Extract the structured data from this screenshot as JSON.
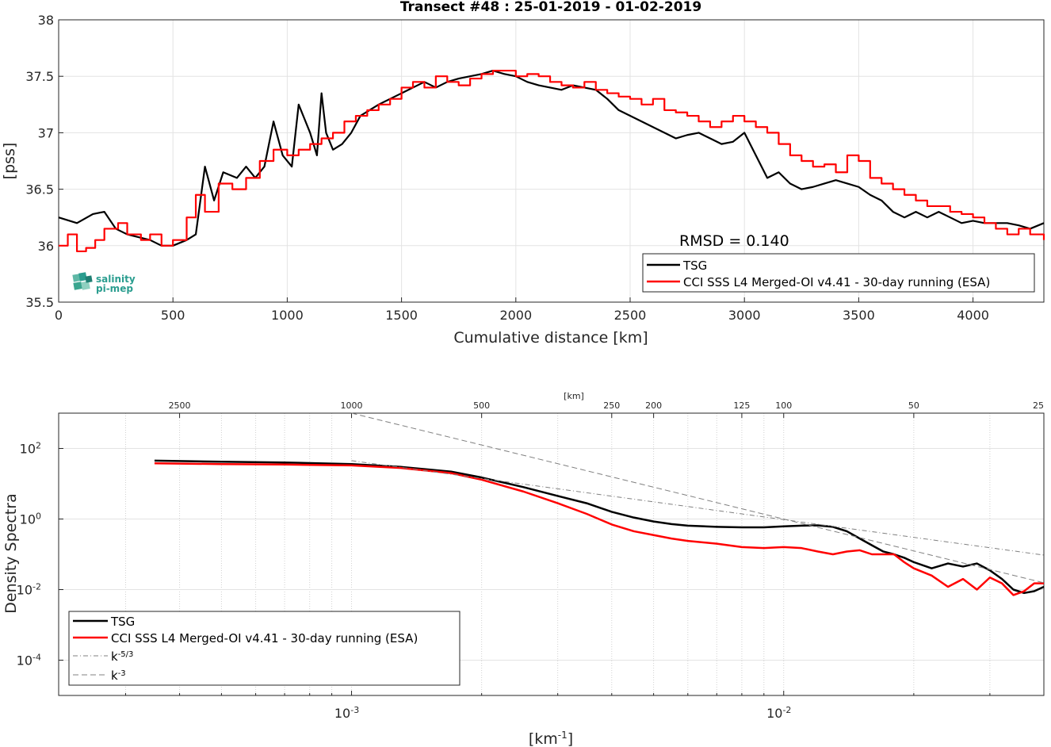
{
  "chart_data": [
    {
      "type": "line",
      "title": "Transect #48 : 25-01-2019 - 01-02-2019",
      "xlabel": "Cumulative distance [km]",
      "ylabel": "[pss]",
      "xlim": [
        0,
        4310
      ],
      "ylim": [
        35.5,
        38
      ],
      "xticks": [
        0,
        500,
        1000,
        1500,
        2000,
        2500,
        3000,
        3500,
        4000
      ],
      "xtick_labels": [
        "0",
        "500",
        "1000",
        "1500",
        "2000",
        "2500",
        "3000",
        "3500",
        "4000"
      ],
      "yticks": [
        35.5,
        36,
        36.5,
        37,
        37.5,
        38
      ],
      "ytick_labels": [
        "35.5",
        "36",
        "36.5",
        "37",
        "37.5",
        "38"
      ],
      "grid": true,
      "legend_position": "bottom-right",
      "annotation": "RMSD = 0.140",
      "series": [
        {
          "name": "TSG",
          "color": "#000000",
          "x": [
            0,
            80,
            150,
            200,
            250,
            300,
            400,
            450,
            500,
            560,
            600,
            640,
            680,
            720,
            780,
            820,
            860,
            900,
            940,
            980,
            1020,
            1050,
            1100,
            1130,
            1150,
            1170,
            1200,
            1240,
            1280,
            1320,
            1360,
            1400,
            1450,
            1500,
            1550,
            1600,
            1650,
            1700,
            1750,
            1800,
            1850,
            1900,
            1950,
            2000,
            2050,
            2100,
            2150,
            2200,
            2250,
            2300,
            2350,
            2400,
            2450,
            2500,
            2550,
            2600,
            2650,
            2700,
            2750,
            2800,
            2850,
            2900,
            2950,
            3000,
            3050,
            3100,
            3150,
            3200,
            3250,
            3300,
            3350,
            3400,
            3450,
            3500,
            3550,
            3600,
            3650,
            3700,
            3750,
            3800,
            3850,
            3900,
            3950,
            4000,
            4050,
            4100,
            4150,
            4200,
            4250,
            4310
          ],
          "y": [
            36.25,
            36.2,
            36.28,
            36.3,
            36.15,
            36.1,
            36.05,
            36.0,
            36.0,
            36.05,
            36.1,
            36.7,
            36.4,
            36.65,
            36.6,
            36.7,
            36.6,
            36.7,
            37.1,
            36.8,
            36.7,
            37.25,
            37.0,
            36.8,
            37.35,
            37.0,
            36.85,
            36.9,
            37.0,
            37.15,
            37.2,
            37.25,
            37.3,
            37.35,
            37.4,
            37.45,
            37.4,
            37.45,
            37.48,
            37.5,
            37.52,
            37.55,
            37.52,
            37.5,
            37.45,
            37.42,
            37.4,
            37.38,
            37.42,
            37.4,
            37.38,
            37.3,
            37.2,
            37.15,
            37.1,
            37.05,
            37.0,
            36.95,
            36.98,
            37.0,
            36.95,
            36.9,
            36.92,
            37.0,
            36.8,
            36.6,
            36.65,
            36.55,
            36.5,
            36.52,
            36.55,
            36.58,
            36.55,
            36.52,
            36.45,
            36.4,
            36.3,
            36.25,
            36.3,
            36.25,
            36.3,
            36.25,
            36.2,
            36.22,
            36.2,
            36.2,
            36.2,
            36.18,
            36.15,
            36.2
          ]
        },
        {
          "name": "CCI SSS L4 Merged-OI v4.41 - 30-day running (ESA)",
          "color": "#ff0000",
          "x": [
            0,
            40,
            80,
            120,
            160,
            200,
            260,
            300,
            360,
            400,
            450,
            500,
            560,
            600,
            640,
            700,
            760,
            820,
            880,
            940,
            1000,
            1050,
            1100,
            1150,
            1200,
            1250,
            1300,
            1350,
            1400,
            1450,
            1500,
            1550,
            1600,
            1650,
            1700,
            1750,
            1800,
            1850,
            1900,
            1950,
            2000,
            2050,
            2100,
            2150,
            2200,
            2250,
            2300,
            2350,
            2400,
            2450,
            2500,
            2550,
            2600,
            2650,
            2700,
            2750,
            2800,
            2850,
            2900,
            2950,
            3000,
            3050,
            3100,
            3150,
            3200,
            3250,
            3300,
            3350,
            3400,
            3450,
            3500,
            3550,
            3600,
            3650,
            3700,
            3750,
            3800,
            3850,
            3900,
            3950,
            4000,
            4050,
            4100,
            4150,
            4200,
            4250,
            4310
          ],
          "y": [
            36.0,
            36.1,
            35.95,
            35.98,
            36.05,
            36.15,
            36.2,
            36.1,
            36.05,
            36.1,
            36.0,
            36.05,
            36.25,
            36.45,
            36.3,
            36.55,
            36.5,
            36.6,
            36.75,
            36.85,
            36.8,
            36.85,
            36.9,
            36.95,
            37.0,
            37.1,
            37.15,
            37.2,
            37.25,
            37.3,
            37.4,
            37.45,
            37.4,
            37.5,
            37.45,
            37.42,
            37.48,
            37.52,
            37.55,
            37.55,
            37.5,
            37.52,
            37.5,
            37.45,
            37.42,
            37.4,
            37.45,
            37.38,
            37.35,
            37.32,
            37.3,
            37.25,
            37.3,
            37.2,
            37.18,
            37.15,
            37.1,
            37.05,
            37.1,
            37.15,
            37.1,
            37.05,
            37.0,
            36.9,
            36.8,
            36.75,
            36.7,
            36.72,
            36.65,
            36.8,
            36.75,
            36.6,
            36.55,
            36.5,
            36.45,
            36.4,
            36.35,
            36.35,
            36.3,
            36.28,
            36.25,
            36.2,
            36.15,
            36.1,
            36.15,
            36.1,
            36.05
          ]
        }
      ],
      "legend": [
        "TSG",
        "CCI SSS L4 Merged-OI v4.41 - 30-day running (ESA)"
      ]
    },
    {
      "type": "line",
      "xscale": "log",
      "yscale": "log",
      "xlabel": "[km-1]",
      "ylabel": "Density Spectra",
      "secondary_xlabel": "[km]",
      "xlim": [
        0.00021,
        0.04
      ],
      "ylim": [
        1e-05,
        1000
      ],
      "xticks": [
        0.001,
        0.01
      ],
      "xtick_labels": [
        "10",
        "10"
      ],
      "xtick_exponents": [
        "-3",
        "-2"
      ],
      "yticks": [
        0.0001,
        0.01,
        1,
        100
      ],
      "ytick_labels": [
        "10",
        "10",
        "10",
        "10"
      ],
      "ytick_exponents": [
        "-4",
        "-2",
        "0",
        "2"
      ],
      "top_ticks_km": [
        2500,
        1000,
        500,
        250,
        200,
        125,
        100,
        50,
        25
      ],
      "top_tick_labels": [
        "2500",
        "1000",
        "500",
        "250",
        "200",
        "125",
        "100",
        "50",
        "25"
      ],
      "grid": true,
      "legend_position": "bottom-left",
      "series": [
        {
          "name": "TSG",
          "color": "#000000",
          "x": [
            0.00035,
            0.0005,
            0.0007,
            0.001,
            0.0013,
            0.0017,
            0.002,
            0.0025,
            0.003,
            0.0035,
            0.004,
            0.0045,
            0.005,
            0.0055,
            0.006,
            0.007,
            0.008,
            0.009,
            0.01,
            0.011,
            0.012,
            0.013,
            0.014,
            0.015,
            0.016,
            0.017,
            0.018,
            0.019,
            0.02,
            0.022,
            0.024,
            0.026,
            0.028,
            0.03,
            0.032,
            0.034,
            0.036,
            0.038,
            0.04
          ],
          "y": [
            45,
            42,
            40,
            36,
            30,
            22,
            15,
            8,
            4.5,
            2.8,
            1.6,
            1.1,
            0.85,
            0.72,
            0.65,
            0.6,
            0.58,
            0.58,
            0.62,
            0.65,
            0.66,
            0.6,
            0.45,
            0.28,
            0.18,
            0.12,
            0.1,
            0.08,
            0.06,
            0.04,
            0.055,
            0.045,
            0.055,
            0.035,
            0.02,
            0.01,
            0.008,
            0.009,
            0.012
          ]
        },
        {
          "name": "CCI SSS L4 Merged-OI v4.41 - 30-day running (ESA)",
          "color": "#ff0000",
          "x": [
            0.00035,
            0.0005,
            0.0007,
            0.001,
            0.0013,
            0.0017,
            0.002,
            0.0025,
            0.003,
            0.0035,
            0.004,
            0.0045,
            0.005,
            0.0055,
            0.006,
            0.007,
            0.008,
            0.009,
            0.01,
            0.011,
            0.012,
            0.013,
            0.014,
            0.015,
            0.016,
            0.017,
            0.018,
            0.019,
            0.02,
            0.022,
            0.024,
            0.026,
            0.028,
            0.03,
            0.032,
            0.034,
            0.036,
            0.038,
            0.04
          ],
          "y": [
            38,
            36,
            35,
            33,
            28,
            20,
            13,
            6,
            2.8,
            1.4,
            0.7,
            0.45,
            0.35,
            0.28,
            0.24,
            0.2,
            0.16,
            0.15,
            0.16,
            0.15,
            0.12,
            0.1,
            0.12,
            0.13,
            0.1,
            0.1,
            0.1,
            0.06,
            0.04,
            0.025,
            0.012,
            0.02,
            0.01,
            0.022,
            0.015,
            0.007,
            0.009,
            0.015,
            0.015
          ]
        },
        {
          "name": "k-5/3",
          "color": "#808080",
          "x": [
            0.001,
            0.04
          ],
          "y": [
            45,
            0.095
          ]
        },
        {
          "name": "k-3",
          "color": "#808080",
          "x": [
            0.001,
            0.04
          ],
          "y": [
            1000,
            0.0156
          ]
        }
      ],
      "legend": [
        "TSG",
        "CCI SSS L4 Merged-OI v4.41 - 30-day running (ESA)",
        "k",
        "k"
      ],
      "legend_exponents": [
        "",
        "",
        "-5/3",
        "-3"
      ]
    }
  ],
  "logo": {
    "line1": "salinity",
    "line2": "pi-mep",
    "color": "#2a9d8f"
  }
}
